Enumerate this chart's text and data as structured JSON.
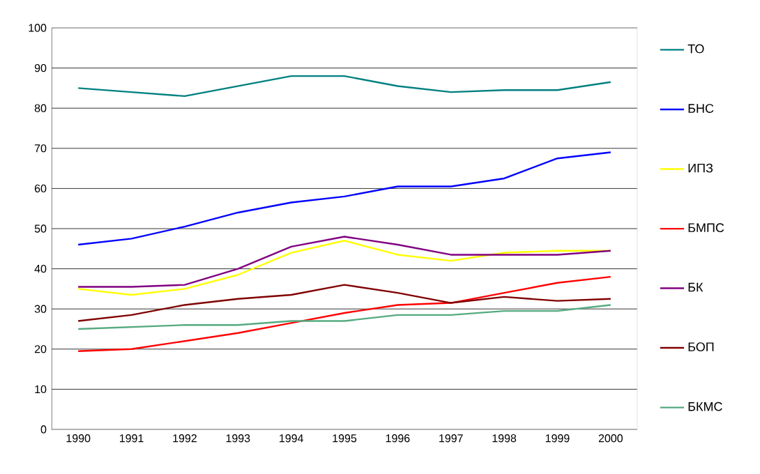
{
  "chart_data": {
    "type": "line",
    "categories": [
      "1990",
      "1991",
      "1992",
      "1993",
      "1994",
      "1995",
      "1996",
      "1997",
      "1998",
      "1999",
      "2000"
    ],
    "series": [
      {
        "name": "ТО",
        "color": "#008080",
        "values": [
          85,
          84,
          83,
          85.5,
          88,
          88,
          85.5,
          84,
          84.5,
          84.5,
          86.5
        ]
      },
      {
        "name": "БНС",
        "color": "#0000ff",
        "values": [
          46,
          47.5,
          50.5,
          54,
          56.5,
          58,
          60.5,
          60.5,
          62.5,
          67.5,
          69
        ]
      },
      {
        "name": "ИПЗ",
        "color": "#ffff00",
        "values": [
          35,
          33.5,
          35,
          38.5,
          44,
          47,
          43.5,
          42,
          44,
          44.5,
          44.5
        ]
      },
      {
        "name": "БМПС",
        "color": "#ff0000",
        "values": [
          19.5,
          20,
          22,
          24,
          26.5,
          29,
          31,
          31.5,
          34,
          36.5,
          38
        ]
      },
      {
        "name": "БК",
        "color": "#800080",
        "values": [
          35.5,
          35.5,
          36,
          40,
          45.5,
          48,
          46,
          43.5,
          43.5,
          43.5,
          44.5
        ]
      },
      {
        "name": "БОП",
        "color": "#800000",
        "values": [
          27,
          28.5,
          31,
          32.5,
          33.5,
          36,
          34,
          31.5,
          33,
          32,
          32.5
        ]
      },
      {
        "name": "БКМС",
        "color": "#55aa80",
        "values": [
          25,
          25.5,
          26,
          26,
          27,
          27,
          28.5,
          28.5,
          29.5,
          29.5,
          31
        ]
      }
    ],
    "ylim": [
      0,
      100
    ],
    "yticks": [
      0,
      10,
      20,
      30,
      40,
      50,
      60,
      70,
      80,
      90,
      100
    ],
    "grid": "y",
    "legend": "right",
    "marker": "none",
    "line_style": "solid"
  }
}
